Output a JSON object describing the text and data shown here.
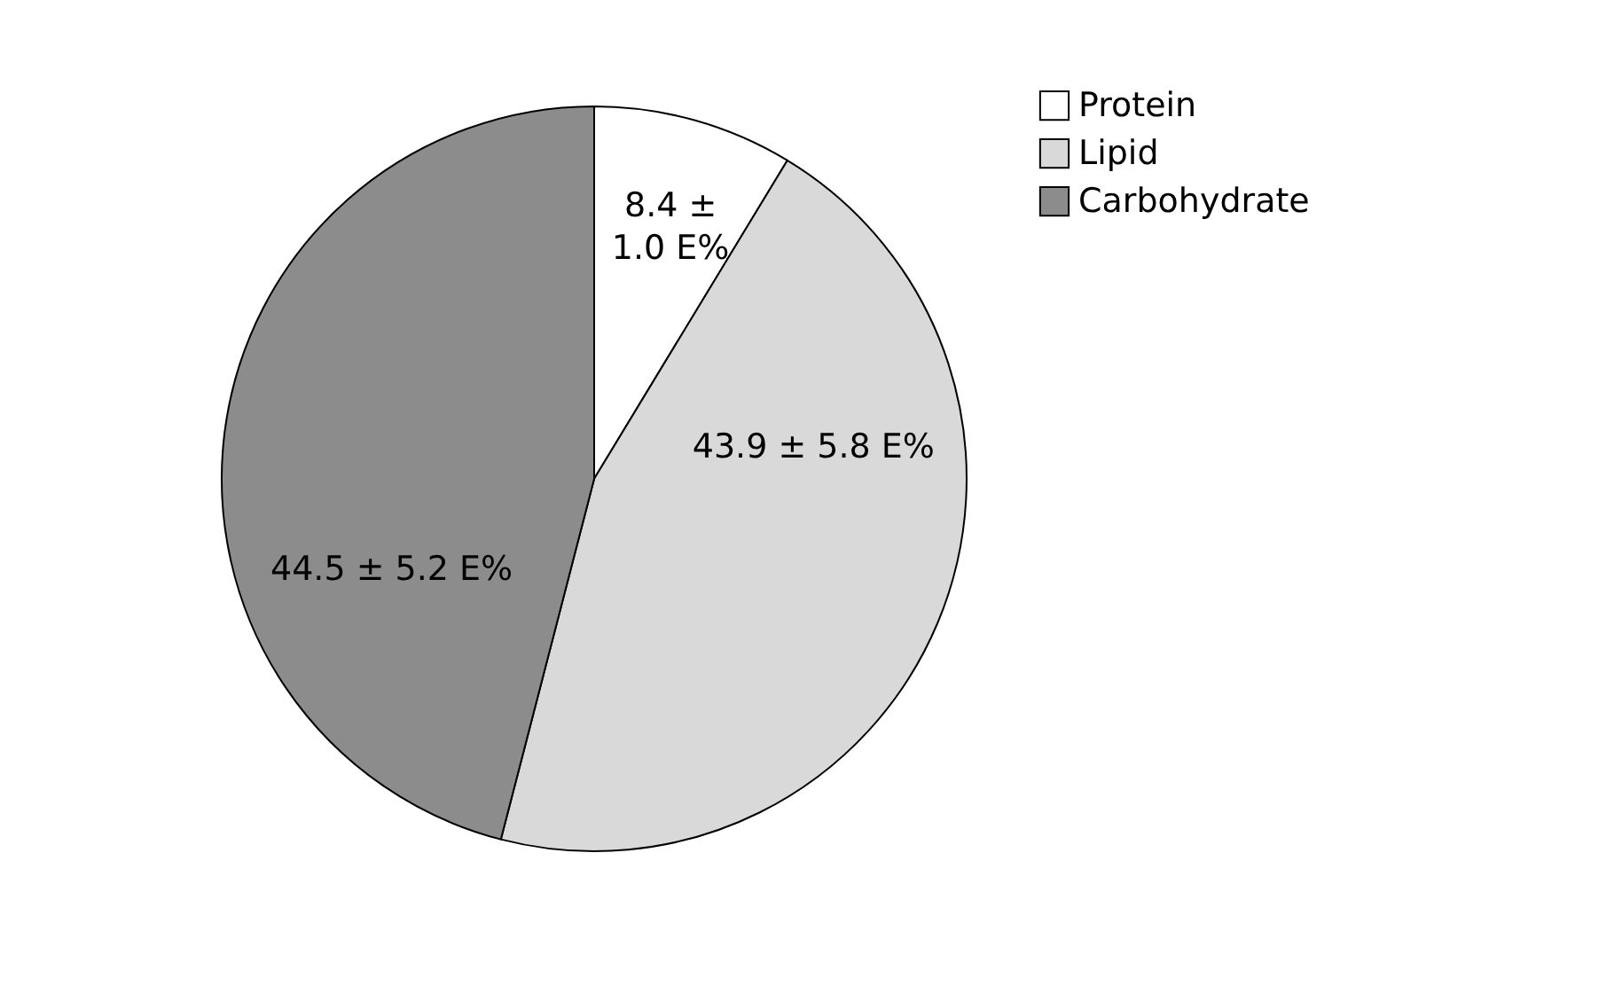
{
  "chart_data": {
    "type": "pie",
    "categories": [
      "Protein",
      "Lipid",
      "Carbohydrate"
    ],
    "values": [
      8.4,
      43.9,
      44.5
    ],
    "colors": [
      "#ffffff",
      "#d9d9d9",
      "#8c8c8c"
    ],
    "value_labels": [
      "8.4 ± 1.0 E%",
      "43.9 ± 5.8 E%",
      "44.5 ± 5.2 E%"
    ],
    "legend": "right"
  }
}
